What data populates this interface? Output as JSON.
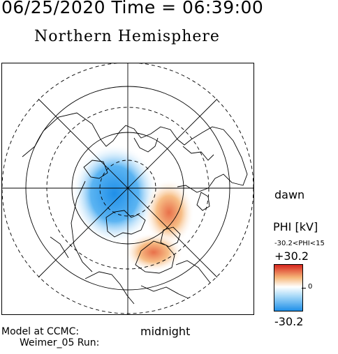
{
  "header": {
    "datetime": "06/25/2020 Time = 06:39:00"
  },
  "title": "Northern Hemisphere",
  "map": {
    "projection": "polar-stereographic",
    "labels": {
      "dawn": "dawn",
      "midnight": "midnight"
    },
    "colors": {
      "positive": "#d7261e",
      "negative": "#1f8fe8",
      "neutral": "#ffffff"
    }
  },
  "legend": {
    "title": "PHI [kV]",
    "range": "-30.2<PHI<15",
    "max": "+30.2",
    "zero": "0",
    "min": "-30.2"
  },
  "footer": {
    "model": "Model at CCMC:",
    "run": "Weimer_05 Run:"
  }
}
